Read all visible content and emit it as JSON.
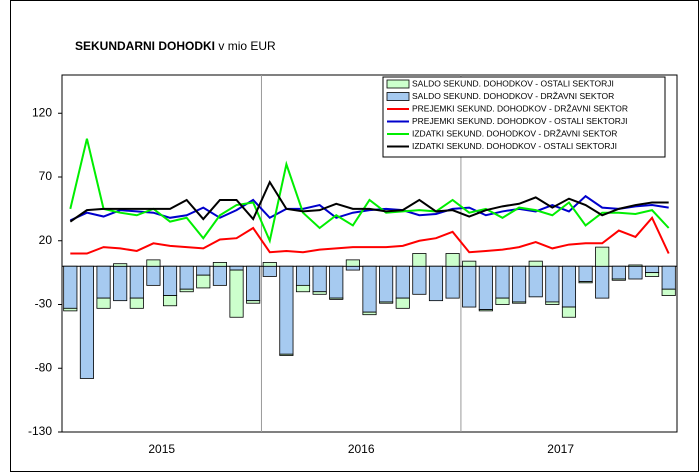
{
  "chart_data": {
    "type": "bar-line",
    "title": "SEKUNDARNI DOHODKI",
    "subtitle": "v mio EUR",
    "year_labels": [
      "2015",
      "2016",
      "2017"
    ],
    "ylim": [
      -130,
      150
    ],
    "yticks": [
      -130,
      -80,
      -30,
      20,
      70,
      120
    ],
    "series": [
      {
        "name": "SALDO SEKUND. DOHODKOV - OSTALI SEKTORJI",
        "kind": "bar",
        "color": "#ccffcc",
        "values": [
          -2,
          0,
          -8,
          2,
          -8,
          5,
          -8,
          -2,
          -10,
          3,
          -37,
          -2,
          3,
          -1,
          -5,
          -2,
          -1,
          5,
          -2,
          -1,
          -8,
          10,
          0,
          10,
          4,
          -1,
          -5,
          -1,
          4,
          -2,
          -8,
          -1,
          15,
          -1,
          1,
          -3,
          -5
        ]
      },
      {
        "name": "SALDO SEKUND. DOHODKOV - DRŽAVNI SEKTOR",
        "kind": "bar",
        "color": "#a6caf0",
        "values": [
          -33,
          -88,
          -25,
          -27,
          -25,
          -15,
          -23,
          -18,
          -7,
          -15,
          -3,
          -27,
          -8,
          -69,
          -15,
          -20,
          -25,
          -3,
          -36,
          -28,
          -25,
          -22,
          -27,
          -25,
          -32,
          -34,
          -25,
          -28,
          -24,
          -28,
          -32,
          -12,
          -25,
          -10,
          -10,
          -5,
          -18
        ]
      },
      {
        "name": "PREJEMKI SEKUND. DOHODKOV - DRŽAVNI SEKTOR",
        "kind": "line",
        "color": "#ff0000",
        "values": [
          10,
          10,
          15,
          14,
          12,
          18,
          16,
          15,
          14,
          21,
          22,
          30,
          11,
          12,
          11,
          13,
          14,
          15,
          15,
          15,
          16,
          20,
          22,
          27,
          11,
          12,
          13,
          15,
          19,
          14,
          17,
          18,
          18,
          28,
          23,
          38,
          10
        ]
      },
      {
        "name": "PREJEMKI SEKUND. DOHODKOV - OSTALI SEKTORJI",
        "kind": "line",
        "color": "#0000cc",
        "values": [
          36,
          42,
          39,
          44,
          43,
          42,
          38,
          40,
          46,
          38,
          44,
          52,
          38,
          45,
          45,
          48,
          38,
          42,
          44,
          45,
          44,
          40,
          41,
          45,
          46,
          40,
          43,
          45,
          43,
          48,
          43,
          55,
          46,
          45,
          47,
          48,
          46
        ]
      },
      {
        "name": "IZDATKI SEKUND. DOHODKOV - DRŽAVNI SEKTOR",
        "kind": "line",
        "color": "#00ee00",
        "values": [
          45,
          100,
          45,
          42,
          40,
          45,
          35,
          38,
          22,
          40,
          48,
          50,
          20,
          80,
          42,
          30,
          40,
          32,
          52,
          42,
          43,
          44,
          43,
          52,
          42,
          45,
          38,
          46,
          44,
          40,
          50,
          32,
          42,
          42,
          41,
          44,
          30
        ]
      },
      {
        "name": "IZDATKI SEKUND. DOHODKOV - OSTALI SEKTORJI",
        "kind": "line",
        "color": "#000000",
        "values": [
          35,
          44,
          45,
          45,
          45,
          45,
          45,
          52,
          37,
          52,
          52,
          37,
          66,
          45,
          43,
          44,
          49,
          45,
          45,
          43,
          44,
          52,
          43,
          44,
          39,
          44,
          47,
          49,
          54,
          46,
          53,
          48,
          40,
          45,
          48,
          50,
          50
        ]
      }
    ]
  }
}
